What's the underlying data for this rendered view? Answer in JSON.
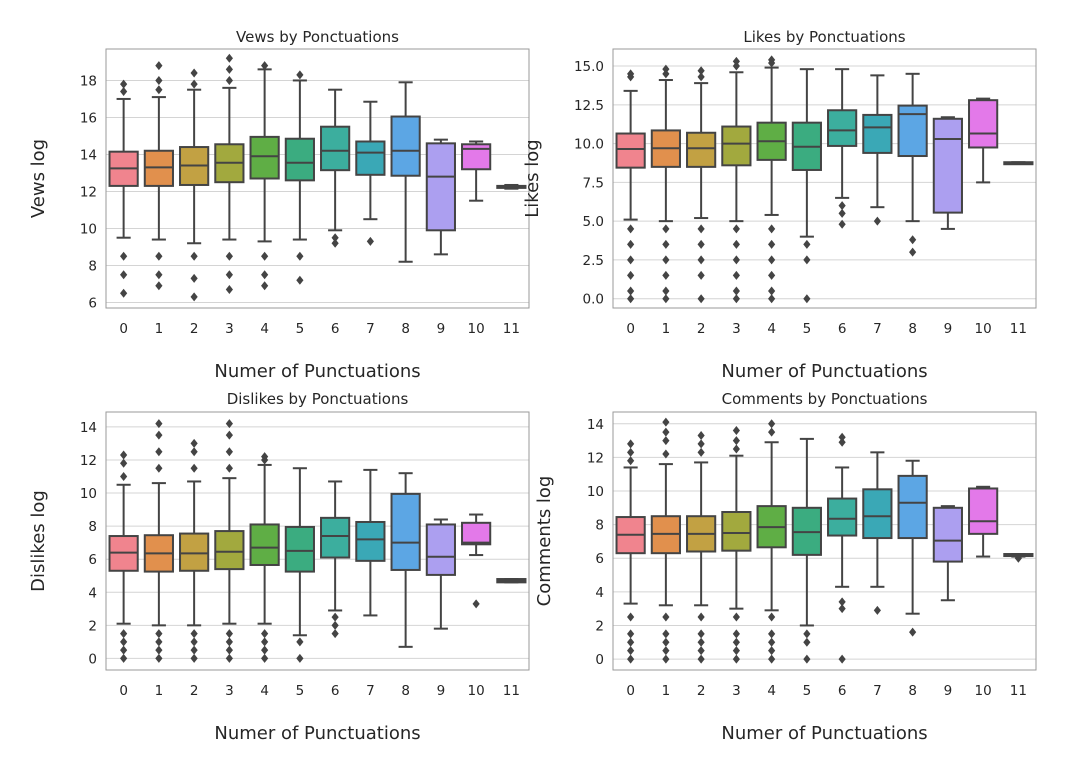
{
  "chart_data": [
    {
      "type": "box",
      "title": "Vews by Ponctuations",
      "xlabel": "Numer of Punctuations",
      "ylabel": "Vews log",
      "categories": [
        "0",
        "1",
        "2",
        "3",
        "4",
        "5",
        "6",
        "7",
        "8",
        "9",
        "10",
        "11"
      ],
      "ylim": [
        5.7,
        19.7
      ],
      "yticks": [
        6,
        8,
        10,
        12,
        14,
        16,
        18
      ],
      "grid": true,
      "boxes": [
        {
          "q1": 12.3,
          "median": 13.25,
          "q3": 14.15,
          "whisker_low": 9.5,
          "whisker_high": 17.0,
          "outliers": [
            17.4,
            17.8,
            8.5,
            7.5,
            6.5
          ]
        },
        {
          "q1": 12.3,
          "median": 13.3,
          "q3": 14.2,
          "whisker_low": 9.4,
          "whisker_high": 17.1,
          "outliers": [
            17.5,
            18.0,
            18.8,
            8.5,
            7.5,
            6.9
          ]
        },
        {
          "q1": 12.35,
          "median": 13.4,
          "q3": 14.4,
          "whisker_low": 9.2,
          "whisker_high": 17.5,
          "outliers": [
            17.8,
            18.4,
            8.5,
            7.3,
            6.3
          ]
        },
        {
          "q1": 12.5,
          "median": 13.55,
          "q3": 14.55,
          "whisker_low": 9.4,
          "whisker_high": 17.6,
          "outliers": [
            18.0,
            18.6,
            19.2,
            8.5,
            7.5,
            6.7
          ]
        },
        {
          "q1": 12.7,
          "median": 13.9,
          "q3": 14.95,
          "whisker_low": 9.3,
          "whisker_high": 18.6,
          "outliers": [
            18.8,
            8.5,
            7.5,
            6.9
          ]
        },
        {
          "q1": 12.6,
          "median": 13.55,
          "q3": 14.85,
          "whisker_low": 9.4,
          "whisker_high": 18.0,
          "outliers": [
            18.3,
            8.5,
            7.2
          ]
        },
        {
          "q1": 13.15,
          "median": 14.2,
          "q3": 15.5,
          "whisker_low": 9.9,
          "whisker_high": 17.5,
          "outliers": [
            9.5,
            9.2
          ]
        },
        {
          "q1": 12.9,
          "median": 14.1,
          "q3": 14.7,
          "whisker_low": 10.5,
          "whisker_high": 16.85,
          "outliers": [
            9.3
          ]
        },
        {
          "q1": 12.85,
          "median": 14.2,
          "q3": 16.05,
          "whisker_low": 8.2,
          "whisker_high": 17.9,
          "outliers": []
        },
        {
          "q1": 9.9,
          "median": 12.8,
          "q3": 14.6,
          "whisker_low": 8.6,
          "whisker_high": 14.8,
          "outliers": []
        },
        {
          "q1": 13.2,
          "median": 14.3,
          "q3": 14.55,
          "whisker_low": 11.5,
          "whisker_high": 14.7,
          "outliers": []
        },
        {
          "q1": 12.2,
          "median": 12.25,
          "q3": 12.3,
          "whisker_low": 12.15,
          "whisker_high": 12.35,
          "outliers": []
        }
      ]
    },
    {
      "type": "box",
      "title": "Likes by Ponctuations",
      "xlabel": "Numer of Punctuations",
      "ylabel": "Likes log",
      "categories": [
        "0",
        "1",
        "2",
        "3",
        "4",
        "5",
        "6",
        "7",
        "8",
        "9",
        "10",
        "11"
      ],
      "ylim": [
        -0.6,
        16.1
      ],
      "yticks": [
        0.0,
        2.5,
        5.0,
        7.5,
        10.0,
        12.5,
        15.0
      ],
      "grid": true,
      "boxes": [
        {
          "q1": 8.45,
          "median": 9.65,
          "q3": 10.65,
          "whisker_low": 5.1,
          "whisker_high": 13.4,
          "outliers": [
            14.3,
            14.5,
            4.5,
            3.5,
            2.5,
            1.5,
            0.5,
            0.0
          ]
        },
        {
          "q1": 8.5,
          "median": 9.7,
          "q3": 10.85,
          "whisker_low": 5.0,
          "whisker_high": 14.1,
          "outliers": [
            14.5,
            14.8,
            4.5,
            3.5,
            2.5,
            1.5,
            0.5,
            0.0
          ]
        },
        {
          "q1": 8.5,
          "median": 9.7,
          "q3": 10.7,
          "whisker_low": 5.2,
          "whisker_high": 13.9,
          "outliers": [
            14.3,
            14.7,
            4.5,
            3.5,
            2.5,
            1.5,
            0.0
          ]
        },
        {
          "q1": 8.6,
          "median": 10.0,
          "q3": 11.1,
          "whisker_low": 5.0,
          "whisker_high": 14.6,
          "outliers": [
            15.0,
            15.3,
            4.5,
            3.5,
            2.5,
            1.5,
            0.5,
            0.0
          ]
        },
        {
          "q1": 8.95,
          "median": 10.15,
          "q3": 11.35,
          "whisker_low": 5.4,
          "whisker_high": 14.9,
          "outliers": [
            15.2,
            15.4,
            4.5,
            3.5,
            2.5,
            1.5,
            0.5,
            0.0
          ]
        },
        {
          "q1": 8.3,
          "median": 9.8,
          "q3": 11.35,
          "whisker_low": 4.0,
          "whisker_high": 14.8,
          "outliers": [
            3.5,
            2.5,
            0.0
          ]
        },
        {
          "q1": 9.85,
          "median": 10.85,
          "q3": 12.15,
          "whisker_low": 6.5,
          "whisker_high": 14.8,
          "outliers": [
            6.0,
            5.5,
            4.8
          ]
        },
        {
          "q1": 9.4,
          "median": 11.05,
          "q3": 11.85,
          "whisker_low": 5.9,
          "whisker_high": 14.4,
          "outliers": [
            5.0
          ]
        },
        {
          "q1": 9.2,
          "median": 11.9,
          "q3": 12.45,
          "whisker_low": 5.0,
          "whisker_high": 14.5,
          "outliers": [
            3.8,
            3.0
          ]
        },
        {
          "q1": 5.55,
          "median": 10.3,
          "q3": 11.6,
          "whisker_low": 4.5,
          "whisker_high": 11.7,
          "outliers": []
        },
        {
          "q1": 9.75,
          "median": 10.65,
          "q3": 12.8,
          "whisker_low": 7.5,
          "whisker_high": 12.9,
          "outliers": []
        },
        {
          "q1": 8.7,
          "median": 8.75,
          "q3": 8.8,
          "whisker_low": 8.7,
          "whisker_high": 8.8,
          "outliers": []
        }
      ]
    },
    {
      "type": "box",
      "title": "Dislikes by Ponctuations",
      "xlabel": "Numer of Punctuations",
      "ylabel": "Dislikes log",
      "categories": [
        "0",
        "1",
        "2",
        "3",
        "4",
        "5",
        "6",
        "7",
        "8",
        "9",
        "10",
        "11"
      ],
      "ylim": [
        -0.7,
        14.9
      ],
      "yticks": [
        0,
        2,
        4,
        6,
        8,
        10,
        12,
        14
      ],
      "grid": true,
      "boxes": [
        {
          "q1": 5.3,
          "median": 6.4,
          "q3": 7.4,
          "whisker_low": 2.1,
          "whisker_high": 10.5,
          "outliers": [
            11.0,
            11.8,
            12.3,
            1.5,
            1.0,
            0.5,
            0.0
          ]
        },
        {
          "q1": 5.25,
          "median": 6.35,
          "q3": 7.45,
          "whisker_low": 2.0,
          "whisker_high": 10.6,
          "outliers": [
            11.5,
            12.5,
            13.5,
            14.2,
            1.5,
            1.0,
            0.5,
            0.0
          ]
        },
        {
          "q1": 5.3,
          "median": 6.35,
          "q3": 7.55,
          "whisker_low": 2.0,
          "whisker_high": 10.7,
          "outliers": [
            11.5,
            12.5,
            13.0,
            1.5,
            1.0,
            0.5,
            0.0
          ]
        },
        {
          "q1": 5.4,
          "median": 6.45,
          "q3": 7.7,
          "whisker_low": 2.1,
          "whisker_high": 10.9,
          "outliers": [
            11.5,
            12.5,
            13.5,
            14.2,
            1.5,
            1.0,
            0.5,
            0.0
          ]
        },
        {
          "q1": 5.65,
          "median": 6.7,
          "q3": 8.1,
          "whisker_low": 2.1,
          "whisker_high": 11.7,
          "outliers": [
            12.0,
            12.2,
            1.5,
            1.0,
            0.5,
            0.0
          ]
        },
        {
          "q1": 5.25,
          "median": 6.5,
          "q3": 7.95,
          "whisker_low": 1.4,
          "whisker_high": 11.5,
          "outliers": [
            1.0,
            0.0
          ]
        },
        {
          "q1": 6.1,
          "median": 7.4,
          "q3": 8.5,
          "whisker_low": 2.9,
          "whisker_high": 10.7,
          "outliers": [
            2.5,
            2.0,
            1.5
          ]
        },
        {
          "q1": 5.9,
          "median": 7.2,
          "q3": 8.25,
          "whisker_low": 2.6,
          "whisker_high": 11.4,
          "outliers": []
        },
        {
          "q1": 5.35,
          "median": 7.0,
          "q3": 9.95,
          "whisker_low": 0.7,
          "whisker_high": 11.2,
          "outliers": []
        },
        {
          "q1": 5.05,
          "median": 6.15,
          "q3": 8.1,
          "whisker_low": 1.8,
          "whisker_high": 8.4,
          "outliers": []
        },
        {
          "q1": 6.9,
          "median": 7.0,
          "q3": 8.2,
          "whisker_low": 6.25,
          "whisker_high": 8.7,
          "outliers": [
            3.3
          ]
        },
        {
          "q1": 4.6,
          "median": 4.7,
          "q3": 4.8,
          "whisker_low": 4.6,
          "whisker_high": 4.8,
          "outliers": []
        }
      ]
    },
    {
      "type": "box",
      "title": "Comments by Ponctuations",
      "xlabel": "Numer of Punctuations",
      "ylabel": "Comments log",
      "categories": [
        "0",
        "1",
        "2",
        "3",
        "4",
        "5",
        "6",
        "7",
        "8",
        "9",
        "10",
        "11"
      ],
      "ylim": [
        -0.65,
        14.7
      ],
      "yticks": [
        0,
        2,
        4,
        6,
        8,
        10,
        12,
        14
      ],
      "grid": true,
      "boxes": [
        {
          "q1": 6.3,
          "median": 7.4,
          "q3": 8.45,
          "whisker_low": 3.3,
          "whisker_high": 11.4,
          "outliers": [
            11.8,
            12.3,
            12.8,
            2.5,
            1.5,
            1.0,
            0.5,
            0.0
          ]
        },
        {
          "q1": 6.3,
          "median": 7.45,
          "q3": 8.5,
          "whisker_low": 3.2,
          "whisker_high": 11.6,
          "outliers": [
            12.2,
            13.0,
            13.5,
            14.1,
            2.5,
            1.5,
            1.0,
            0.5,
            0.0
          ]
        },
        {
          "q1": 6.4,
          "median": 7.45,
          "q3": 8.5,
          "whisker_low": 3.2,
          "whisker_high": 11.7,
          "outliers": [
            12.3,
            12.8,
            13.3,
            2.5,
            1.5,
            1.0,
            0.5,
            0.0
          ]
        },
        {
          "q1": 6.45,
          "median": 7.5,
          "q3": 8.75,
          "whisker_low": 3.0,
          "whisker_high": 12.1,
          "outliers": [
            12.5,
            13.0,
            13.6,
            2.5,
            1.5,
            1.0,
            0.5,
            0.0
          ]
        },
        {
          "q1": 6.65,
          "median": 7.85,
          "q3": 9.1,
          "whisker_low": 2.9,
          "whisker_high": 12.9,
          "outliers": [
            13.5,
            14.0,
            2.5,
            1.5,
            1.0,
            0.5,
            0.0
          ]
        },
        {
          "q1": 6.2,
          "median": 7.55,
          "q3": 9.0,
          "whisker_low": 2.0,
          "whisker_high": 13.1,
          "outliers": [
            1.5,
            1.0,
            0.0
          ]
        },
        {
          "q1": 7.35,
          "median": 8.35,
          "q3": 9.55,
          "whisker_low": 4.3,
          "whisker_high": 11.4,
          "outliers": [
            12.9,
            13.2,
            3.4,
            3.0,
            0.0
          ]
        },
        {
          "q1": 7.2,
          "median": 8.5,
          "q3": 10.1,
          "whisker_low": 4.3,
          "whisker_high": 12.3,
          "outliers": [
            2.9
          ]
        },
        {
          "q1": 7.2,
          "median": 9.3,
          "q3": 10.9,
          "whisker_low": 2.7,
          "whisker_high": 11.8,
          "outliers": [
            1.6
          ]
        },
        {
          "q1": 5.8,
          "median": 7.05,
          "q3": 9.0,
          "whisker_low": 3.5,
          "whisker_high": 9.1,
          "outliers": []
        },
        {
          "q1": 7.45,
          "median": 8.2,
          "q3": 10.15,
          "whisker_low": 6.1,
          "whisker_high": 10.25,
          "outliers": []
        },
        {
          "q1": 6.15,
          "median": 6.2,
          "q3": 6.25,
          "whisker_low": 6.1,
          "whisker_high": 6.25,
          "outliers": [
            6.0
          ]
        }
      ]
    }
  ],
  "palette": [
    "#f0848e",
    "#e1904d",
    "#c2a143",
    "#a2a93e",
    "#5fae45",
    "#3bac80",
    "#3cae9e",
    "#3aa8b6",
    "#5ca6e4",
    "#ac9ff0",
    "#e379e9",
    "#f37ec9"
  ],
  "style": {
    "box_edge": "#444444",
    "grid_color": "#d4d4d4",
    "spine_color": "#9a9a9a"
  }
}
